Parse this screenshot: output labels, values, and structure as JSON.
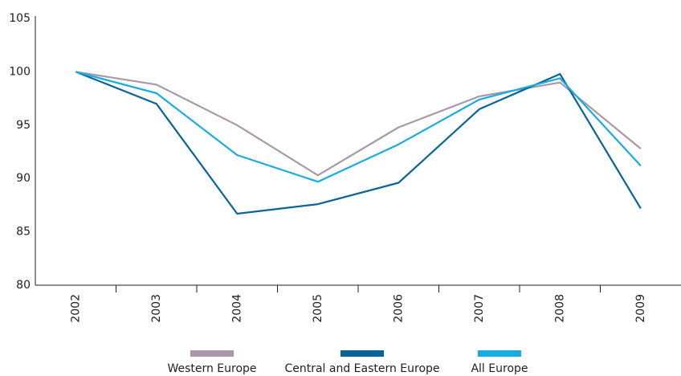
{
  "chart_data": {
    "type": "line",
    "categories": [
      "2002",
      "2003",
      "2004",
      "2005",
      "2006",
      "2007",
      "2008",
      "2009"
    ],
    "series": [
      {
        "name": "Western Europe",
        "color": "#a898aa",
        "values": [
          100,
          98.8,
          95.0,
          90.3,
          94.8,
          97.7,
          99.0,
          92.8
        ]
      },
      {
        "name": "Central and Eastern Europe",
        "color": "#0a6496",
        "values": [
          100,
          97.0,
          86.7,
          87.6,
          89.6,
          96.5,
          99.8,
          87.2
        ]
      },
      {
        "name": "All Europe",
        "color": "#1aabe0",
        "values": [
          100,
          98.0,
          92.2,
          89.7,
          93.2,
          97.4,
          99.4,
          91.2
        ]
      }
    ],
    "ylim": [
      80,
      105
    ],
    "yticks": [
      80,
      85,
      90,
      95,
      100,
      105
    ],
    "grid": false,
    "legend": "bottom"
  }
}
